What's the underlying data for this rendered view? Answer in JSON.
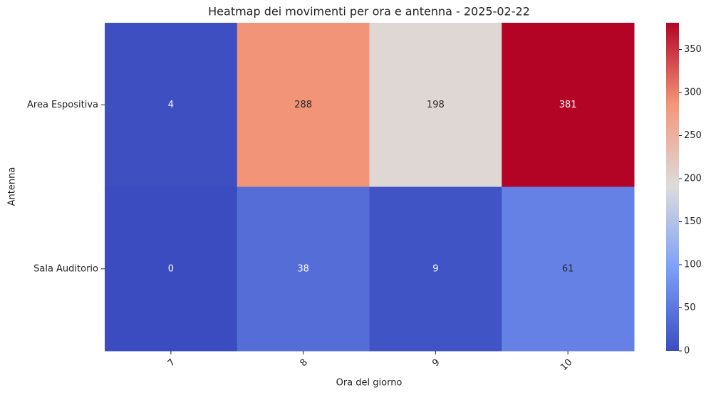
{
  "chart_data": {
    "type": "heatmap",
    "title": "Heatmap dei movimenti per ora e antenna - 2025-02-22",
    "x_label": "Ora del giorno",
    "y_label": "Antenna",
    "categories": [
      "7",
      "8",
      "9",
      "10"
    ],
    "rows": [
      "Area Espositiva",
      "Sala Auditorio"
    ],
    "values": [
      [
        4,
        288,
        198,
        381
      ],
      [
        0,
        38,
        9,
        61
      ]
    ],
    "colormap": "coolwarm",
    "clim": [
      0,
      381
    ],
    "cticks": [
      0,
      50,
      100,
      150,
      200,
      250,
      300,
      350
    ]
  }
}
